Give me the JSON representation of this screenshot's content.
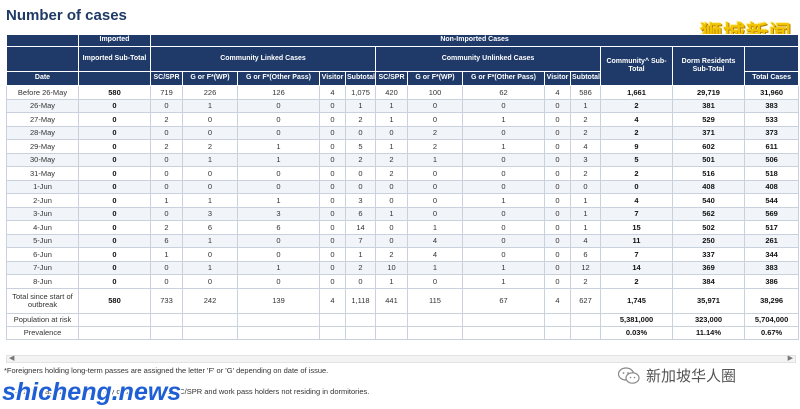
{
  "page_title": "Number of cases",
  "brand_watermark": "狮城新闻",
  "site_watermark": "shicheng.news",
  "wechat_badge": "新加坡华人圈",
  "headers": {
    "imported": "Imported",
    "non_imported": "Non-Imported Cases",
    "imported_subtotal": "Imported Sub-Total",
    "community_linked": "Community Linked Cases",
    "community_unlinked": "Community Unlinked Cases",
    "community_subtotal": "Community^ Sub-Total",
    "dorm_subtotal": "Dorm Residents Sub-Total",
    "date": "Date",
    "total_cases": "Total Cases",
    "cols": [
      "SC/SPR",
      "G or F*(WP)",
      "G or F*(Other Pass)",
      "Visitor",
      "Subtotal"
    ]
  },
  "rows": [
    {
      "date": "Before 26-May",
      "imported": "580",
      "linked": [
        "719",
        "226",
        "126",
        "4",
        "1,075"
      ],
      "unlinked": [
        "420",
        "100",
        "62",
        "4",
        "586"
      ],
      "community": "1,661",
      "dorm": "29,719",
      "total": "31,960"
    },
    {
      "date": "26-May",
      "imported": "0",
      "linked": [
        "0",
        "1",
        "0",
        "0",
        "1"
      ],
      "unlinked": [
        "1",
        "0",
        "0",
        "0",
        "1"
      ],
      "community": "2",
      "dorm": "381",
      "total": "383"
    },
    {
      "date": "27-May",
      "imported": "0",
      "linked": [
        "2",
        "0",
        "0",
        "0",
        "2"
      ],
      "unlinked": [
        "1",
        "0",
        "1",
        "0",
        "2"
      ],
      "community": "4",
      "dorm": "529",
      "total": "533"
    },
    {
      "date": "28-May",
      "imported": "0",
      "linked": [
        "0",
        "0",
        "0",
        "0",
        "0"
      ],
      "unlinked": [
        "0",
        "2",
        "0",
        "0",
        "2"
      ],
      "community": "2",
      "dorm": "371",
      "total": "373"
    },
    {
      "date": "29-May",
      "imported": "0",
      "linked": [
        "2",
        "2",
        "1",
        "0",
        "5"
      ],
      "unlinked": [
        "1",
        "2",
        "1",
        "0",
        "4"
      ],
      "community": "9",
      "dorm": "602",
      "total": "611"
    },
    {
      "date": "30-May",
      "imported": "0",
      "linked": [
        "0",
        "1",
        "1",
        "0",
        "2"
      ],
      "unlinked": [
        "2",
        "1",
        "0",
        "0",
        "3"
      ],
      "community": "5",
      "dorm": "501",
      "total": "506"
    },
    {
      "date": "31-May",
      "imported": "0",
      "linked": [
        "0",
        "0",
        "0",
        "0",
        "0"
      ],
      "unlinked": [
        "2",
        "0",
        "0",
        "0",
        "2"
      ],
      "community": "2",
      "dorm": "516",
      "total": "518"
    },
    {
      "date": "1-Jun",
      "imported": "0",
      "linked": [
        "0",
        "0",
        "0",
        "0",
        "0"
      ],
      "unlinked": [
        "0",
        "0",
        "0",
        "0",
        "0"
      ],
      "community": "0",
      "dorm": "408",
      "total": "408"
    },
    {
      "date": "2-Jun",
      "imported": "0",
      "linked": [
        "1",
        "1",
        "1",
        "0",
        "3"
      ],
      "unlinked": [
        "0",
        "0",
        "1",
        "0",
        "1"
      ],
      "community": "4",
      "dorm": "540",
      "total": "544"
    },
    {
      "date": "3-Jun",
      "imported": "0",
      "linked": [
        "0",
        "3",
        "3",
        "0",
        "6"
      ],
      "unlinked": [
        "1",
        "0",
        "0",
        "0",
        "1"
      ],
      "community": "7",
      "dorm": "562",
      "total": "569"
    },
    {
      "date": "4-Jun",
      "imported": "0",
      "linked": [
        "2",
        "6",
        "6",
        "0",
        "14"
      ],
      "unlinked": [
        "0",
        "1",
        "0",
        "0",
        "1"
      ],
      "community": "15",
      "dorm": "502",
      "total": "517"
    },
    {
      "date": "5-Jun",
      "imported": "0",
      "linked": [
        "6",
        "1",
        "0",
        "0",
        "7"
      ],
      "unlinked": [
        "0",
        "4",
        "0",
        "0",
        "4"
      ],
      "community": "11",
      "dorm": "250",
      "total": "261"
    },
    {
      "date": "6-Jun",
      "imported": "0",
      "linked": [
        "1",
        "0",
        "0",
        "0",
        "1"
      ],
      "unlinked": [
        "2",
        "4",
        "0",
        "0",
        "6"
      ],
      "community": "7",
      "dorm": "337",
      "total": "344"
    },
    {
      "date": "7-Jun",
      "imported": "0",
      "linked": [
        "0",
        "1",
        "1",
        "0",
        "2"
      ],
      "unlinked": [
        "10",
        "1",
        "1",
        "0",
        "12"
      ],
      "community": "14",
      "dorm": "369",
      "total": "383"
    },
    {
      "date": "8-Jun",
      "imported": "0",
      "linked": [
        "0",
        "0",
        "0",
        "0",
        "0"
      ],
      "unlinked": [
        "1",
        "0",
        "1",
        "0",
        "2"
      ],
      "community": "2",
      "dorm": "384",
      "total": "386"
    }
  ],
  "total_row": {
    "label": "Total since start of outbreak",
    "imported": "580",
    "linked": [
      "733",
      "242",
      "139",
      "4",
      "1,118"
    ],
    "unlinked": [
      "441",
      "115",
      "67",
      "4",
      "627"
    ],
    "community": "1,745",
    "dorm": "35,971",
    "total": "38,296"
  },
  "population_row": {
    "label": "Population at risk",
    "community": "5,381,000",
    "dorm": "323,000",
    "total": "5,704,000"
  },
  "prevalence_row": {
    "label": "Prevalence",
    "community": "0.03%",
    "dorm": "11.14%",
    "total": "0.67%"
  },
  "footnote_1": "*Foreigners holding long-term passes are assigned the letter 'F' or 'G' depending on date of issue.",
  "footnote_2": "^Population at risk for community cases comprises SC/SPR and work pass holders not residing in dormitories."
}
